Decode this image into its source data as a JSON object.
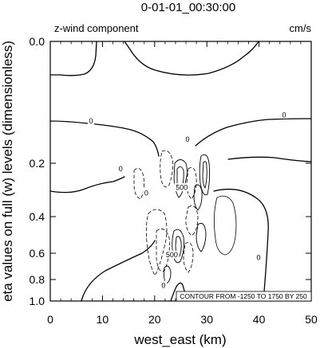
{
  "chart_data": {
    "type": "contour",
    "title": "0-01-01_00:30:00",
    "field_label": "z-wind component",
    "units": "cm/s",
    "xlabel": "west_east (km)",
    "ylabel": "eta values on full (w) levels (dimensionless)",
    "xlim": [
      0,
      50
    ],
    "ylim": [
      0.0,
      1.0
    ],
    "x_ticks": [
      0,
      10,
      20,
      30,
      40,
      50
    ],
    "x_tick_labels": [
      "0",
      "10",
      "20",
      "30",
      "40",
      "50"
    ],
    "y_ticks": [
      0.0,
      0.2,
      0.4,
      0.6,
      0.8,
      1.0
    ],
    "y_tick_labels": [
      "0.0",
      "0.2",
      "0.4",
      "0.6",
      "0.8",
      "1.0"
    ],
    "contour_info": "CONTOUR FROM -1250 TO 1750 BY 250",
    "contour_labels": [
      {
        "text": "0",
        "x": 18.4,
        "y": 0.31
      },
      {
        "text": "0",
        "x": 7.8,
        "y": 0.13
      },
      {
        "text": "0",
        "x": 13.5,
        "y": 0.22
      },
      {
        "text": "0",
        "x": 26.3,
        "y": 0.16
      },
      {
        "text": "0",
        "x": 44.8,
        "y": 0.12
      },
      {
        "text": "0",
        "x": 39.9,
        "y": 0.63
      },
      {
        "text": "0",
        "x": 21.7,
        "y": 0.85
      },
      {
        "text": "500",
        "x": 25.2,
        "y": 0.29
      },
      {
        "text": "500",
        "x": 23.3,
        "y": 0.61
      }
    ],
    "grid": false
  }
}
